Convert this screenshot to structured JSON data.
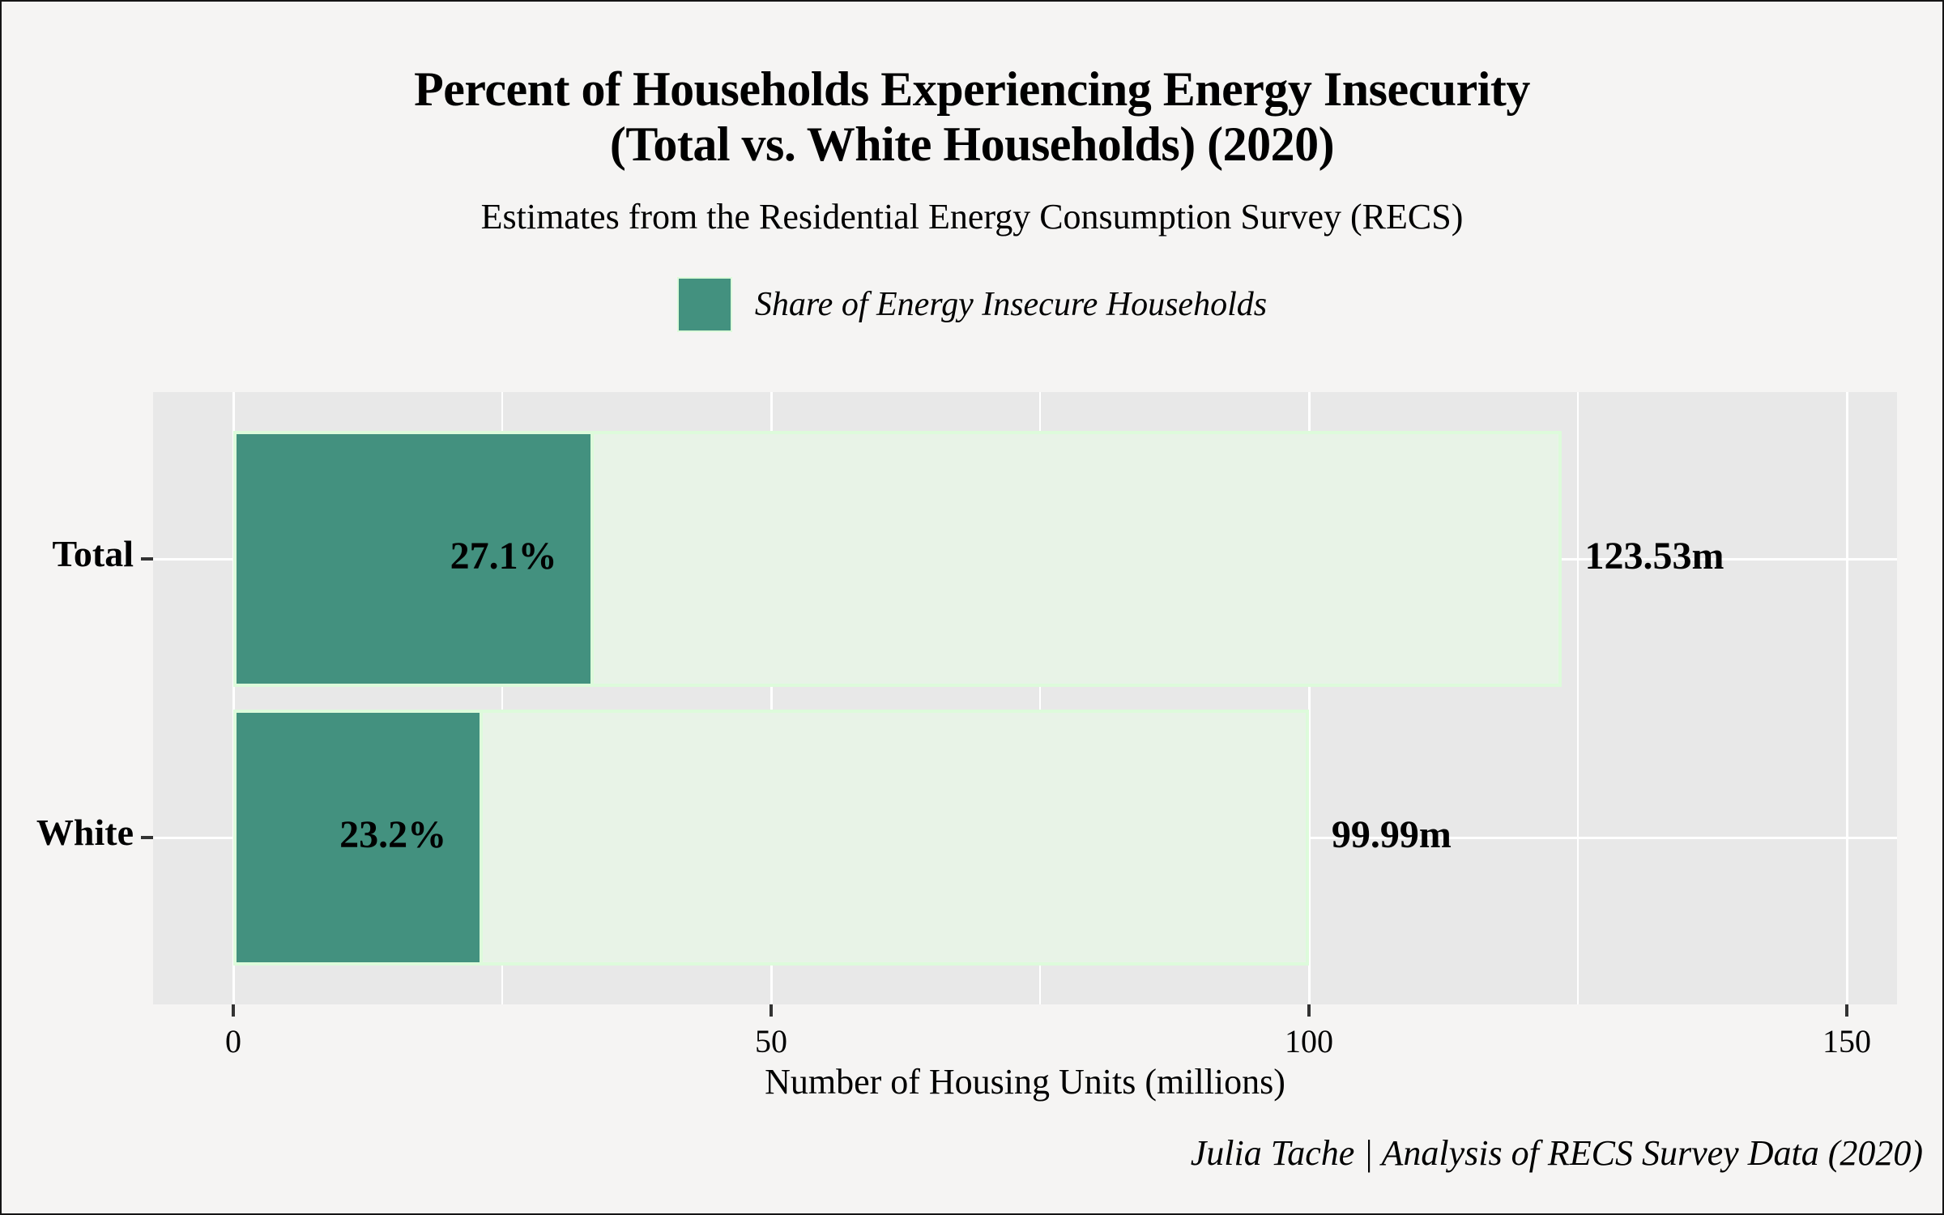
{
  "header": {
    "title_line1": "Percent of Households Experiencing Energy Insecurity",
    "title_line2": "(Total vs. White Households) (2020)",
    "subtitle": "Estimates from the Residential Energy Consumption Survey (RECS)"
  },
  "legend": {
    "label": "Share of Energy Insecure Households",
    "swatch_color": "#43917f"
  },
  "caption": "Julia Tache | Analysis of RECS Survey Data (2020)",
  "chart_data": {
    "type": "bar",
    "orientation": "horizontal",
    "title": "Percent of Households Experiencing Energy Insecurity (Total vs. White Households) (2020)",
    "subtitle": "Estimates from the Residential Energy Consumption Survey (RECS)",
    "categories": [
      "Total",
      "White"
    ],
    "series": [
      {
        "name": "Total housing units (millions)",
        "values": [
          123.53,
          99.99
        ]
      },
      {
        "name": "Share of Energy Insecure Households (percent)",
        "values": [
          27.1,
          23.2
        ]
      }
    ],
    "bar_labels": {
      "share_pct": [
        "27.1%",
        "23.2%"
      ],
      "total_units": [
        "123.53m",
        "99.99m"
      ]
    },
    "xlabel": "Number of Housing Units (millions)",
    "ylabel": "",
    "xlim": [
      0,
      150
    ],
    "x_ticks": [
      0,
      50,
      100,
      150
    ],
    "x_tick_labels": [
      "0",
      "50",
      "100",
      "150"
    ],
    "x_minor_ticks": [
      25,
      75,
      125
    ],
    "grid": true,
    "legend_position": "top-center",
    "colors": {
      "insecure_fill": "#43917f",
      "track_fill": "#e8f3e7",
      "bar_border": "#ddfbdb",
      "panel_bg": "#e8e8e8",
      "page_bg": "#f5f4f3",
      "grid": "#ffffff",
      "tick": "#333333",
      "text": "#000000"
    }
  }
}
